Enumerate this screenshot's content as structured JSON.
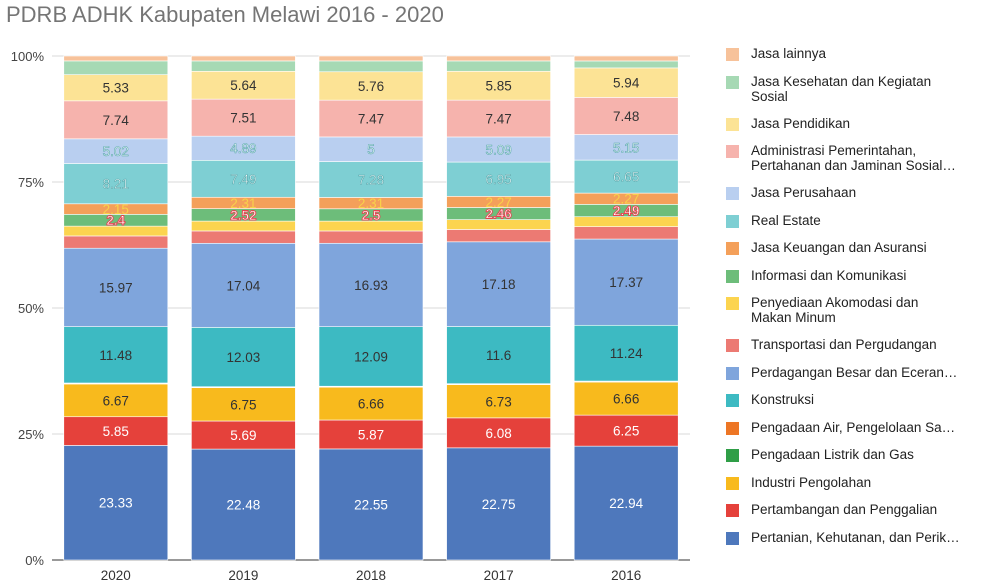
{
  "chart_data": {
    "type": "bar",
    "stacked": "percent",
    "title": "PDRB ADHK Kabupaten Melawi 2016 - 2020",
    "categories": [
      "2020",
      "2019",
      "2018",
      "2017",
      "2016"
    ],
    "y_ticks": [
      "0%",
      "25%",
      "50%",
      "75%",
      "100%"
    ],
    "ylim": [
      0,
      100
    ],
    "legend_position": "right",
    "series": [
      {
        "name": "Pertanian, Kehutanan, dan Perik…",
        "color": "#4e78bc",
        "label_color": "#ffffff",
        "values": [
          23.33,
          22.48,
          22.55,
          22.75,
          22.94
        ],
        "labels": [
          "23.33",
          "22.48",
          "22.55",
          "22.75",
          "22.94"
        ]
      },
      {
        "name": "Pertambangan dan Penggalian",
        "color": "#e5413b",
        "label_color": "#ffffff",
        "values": [
          5.85,
          5.69,
          5.87,
          6.08,
          6.25
        ],
        "labels": [
          "5.85",
          "5.69",
          "5.87",
          "6.08",
          "6.25"
        ]
      },
      {
        "name": "Industri Pengolahan",
        "color": "#f8ba1d",
        "label_color": "#333333",
        "values": [
          6.67,
          6.75,
          6.66,
          6.73,
          6.66
        ],
        "labels": [
          "6.67",
          "6.75",
          "6.66",
          "6.73",
          "6.66"
        ]
      },
      {
        "name": "Pengadaan Listrik dan Gas",
        "color": "#2f9e47",
        "label_color": "#ffffff",
        "values": [
          0.1,
          0.1,
          0.1,
          0.1,
          0.1
        ],
        "labels": [
          "",
          "",
          "",
          "",
          ""
        ]
      },
      {
        "name": "Pengadaan Air, Pengelolaan Sa…",
        "color": "#ed7625",
        "label_color": "#ffffff",
        "values": [
          0.1,
          0.1,
          0.1,
          0.1,
          0.1
        ],
        "labels": [
          "",
          "",
          "",
          "",
          ""
        ]
      },
      {
        "name": "Konstruksi",
        "color": "#3dbac2",
        "label_color": "#333333",
        "values": [
          11.48,
          12.03,
          12.09,
          11.6,
          11.24
        ],
        "labels": [
          "11.48",
          "12.03",
          "12.09",
          "11.6",
          "11.24"
        ]
      },
      {
        "name": "Perdagangan Besar dan Eceran…",
        "color": "#7fa5dc",
        "label_color": "#333333",
        "values": [
          15.97,
          17.04,
          16.93,
          17.18,
          17.37
        ],
        "labels": [
          "15.97",
          "17.04",
          "16.93",
          "17.18",
          "17.37"
        ]
      },
      {
        "name": "Transportasi dan Pergudangan",
        "color": "#ec7a73",
        "label_color": "#ffffff",
        "values": [
          2.5,
          2.5,
          2.5,
          2.5,
          2.5
        ],
        "labels": [
          "",
          "",
          "",
          "",
          ""
        ]
      },
      {
        "name": "Penyediaan Akomodasi dan\nMakan Minum",
        "color": "#fcd44f",
        "label_color": "#333333",
        "values": [
          2.0,
          2.0,
          2.0,
          2.0,
          2.0
        ],
        "labels": [
          "",
          "",
          "",
          "",
          ""
        ]
      },
      {
        "name": "Informasi dan Komunikasi",
        "color": "#6dbd7a",
        "label_color": "#e8414f",
        "values": [
          2.4,
          2.52,
          2.5,
          2.46,
          2.49
        ],
        "labels": [
          "2.4",
          "2.52",
          "2.5",
          "2.46",
          "2.49"
        ]
      },
      {
        "name": "Jasa Keuangan dan Asuransi",
        "color": "#f4a05a",
        "label_color": "#f8d24a",
        "values": [
          2.15,
          2.31,
          2.31,
          2.27,
          2.27
        ],
        "labels": [
          "2.15",
          "2.31",
          "2.31",
          "2.27",
          "2.27"
        ]
      },
      {
        "name": "Real Estate",
        "color": "#7ecfd3",
        "label_color": "#ffffff",
        "values": [
          8.21,
          7.49,
          7.28,
          6.95,
          6.65
        ],
        "labels": [
          "8.21",
          "7.49",
          "7.28",
          "6.95",
          "6.65"
        ]
      },
      {
        "name": "Jasa Perusahaan",
        "color": "#b9cff0",
        "label_color": "#ffffff",
        "values": [
          5.02,
          4.89,
          5,
          5.09,
          5.15
        ],
        "labels": [
          "5.02",
          "4.89",
          "5",
          "5.09",
          "5.15"
        ]
      },
      {
        "name": "Administrasi Pemerintahan,\nPertahanan dan Jaminan Sosial…",
        "color": "#f6b3ad",
        "label_color": "#333333",
        "values": [
          7.74,
          7.51,
          7.47,
          7.47,
          7.48
        ],
        "labels": [
          "7.74",
          "7.51",
          "7.47",
          "7.47",
          "7.48"
        ]
      },
      {
        "name": "Jasa Pendidikan",
        "color": "#fce395",
        "label_color": "#333333",
        "values": [
          5.33,
          5.64,
          5.76,
          5.85,
          5.94
        ],
        "labels": [
          "5.33",
          "5.64",
          "5.76",
          "5.85",
          "5.94"
        ]
      },
      {
        "name": "Jasa Kesehatan dan Kegiatan\nSosial",
        "color": "#a6d9b4",
        "label_color": "#333333",
        "values": [
          2.8,
          2.1,
          2.2,
          2.1,
          1.4
        ],
        "labels": [
          "",
          "",
          "",
          "",
          ""
        ]
      },
      {
        "name": "Jasa lainnya",
        "color": "#f7c29a",
        "label_color": "#333333",
        "values": [
          1.0,
          1.0,
          1.0,
          1.0,
          1.0
        ],
        "labels": [
          "",
          "",
          "",
          "",
          ""
        ]
      }
    ]
  }
}
